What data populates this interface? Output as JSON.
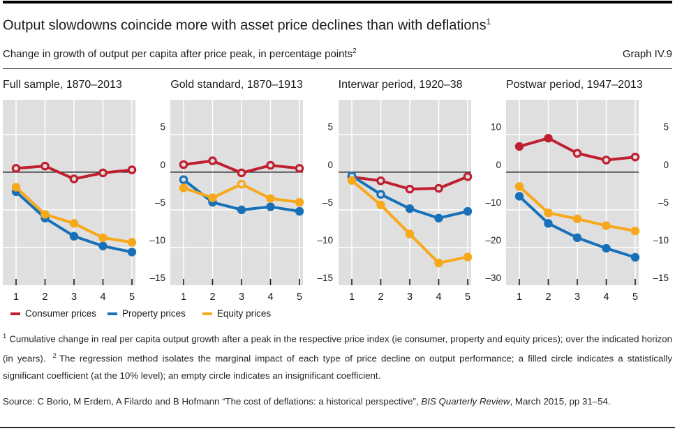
{
  "page": {
    "title": "Output slowdowns coincide more with asset price declines than with deflations",
    "title_sup": "1",
    "subtitle": "Change in growth of output per capita after price peak, in percentage points",
    "subtitle_sup": "2",
    "graph_label": "Graph IV.9"
  },
  "colors": {
    "consumer": "#c01f30",
    "property": "#1871b8",
    "equity": "#f7a81b",
    "plot_bg": "#dfdfdf",
    "grid": "#ffffff",
    "zero_line": "#1a1a1a",
    "text": "#1a1a1a"
  },
  "legend": [
    {
      "label": "Consumer prices",
      "series": "consumer"
    },
    {
      "label": "Property prices",
      "series": "property"
    },
    {
      "label": "Equity prices",
      "series": "equity"
    }
  ],
  "chart_data": [
    {
      "type": "line",
      "title": "Full sample, 1870–2013",
      "x": [
        1,
        2,
        3,
        4,
        5
      ],
      "yticks": [
        5,
        0,
        -5,
        -10,
        -15
      ],
      "ylim": [
        -15,
        9.6
      ],
      "series": [
        {
          "name": "Consumer prices",
          "key": "consumer",
          "values": [
            0.5,
            0.8,
            -0.9,
            -0.1,
            0.3
          ],
          "significant": [
            false,
            false,
            false,
            false,
            false
          ]
        },
        {
          "name": "Property prices",
          "key": "property",
          "values": [
            -2.6,
            -6.1,
            -8.5,
            -9.8,
            -10.6
          ],
          "significant": [
            true,
            true,
            true,
            true,
            true
          ]
        },
        {
          "name": "Equity prices",
          "key": "equity",
          "values": [
            -2.0,
            -5.6,
            -6.8,
            -8.7,
            -9.3
          ],
          "significant": [
            true,
            true,
            true,
            true,
            true
          ]
        }
      ]
    },
    {
      "type": "line",
      "title": "Gold standard, 1870–1913",
      "x": [
        1,
        2,
        3,
        4,
        5
      ],
      "yticks": [
        5,
        0,
        -5,
        -10,
        -15
      ],
      "ylim": [
        -15,
        9.6
      ],
      "series": [
        {
          "name": "Consumer prices",
          "key": "consumer",
          "values": [
            1.0,
            1.5,
            -0.1,
            0.9,
            0.5
          ],
          "significant": [
            false,
            false,
            false,
            false,
            false
          ]
        },
        {
          "name": "Property prices",
          "key": "property",
          "values": [
            -1.0,
            -4.0,
            -5.0,
            -4.6,
            -5.2
          ],
          "significant": [
            false,
            true,
            true,
            true,
            true
          ]
        },
        {
          "name": "Equity prices",
          "key": "equity",
          "values": [
            -2.1,
            -3.4,
            -1.6,
            -3.5,
            -4.0
          ],
          "significant": [
            true,
            true,
            false,
            true,
            true
          ]
        }
      ]
    },
    {
      "type": "line",
      "title": "Interwar period, 1920–38",
      "x": [
        1,
        2,
        3,
        4,
        5
      ],
      "yticks": [
        10,
        0,
        -10,
        -20,
        -30
      ],
      "ylim": [
        -30,
        19.2
      ],
      "series": [
        {
          "name": "Consumer prices",
          "key": "consumer",
          "values": [
            -1.3,
            -2.3,
            -4.5,
            -4.3,
            -1.2
          ],
          "significant": [
            false,
            false,
            false,
            false,
            false
          ]
        },
        {
          "name": "Property prices",
          "key": "property",
          "values": [
            -1.0,
            -5.9,
            -9.7,
            -12.2,
            -10.4
          ],
          "significant": [
            false,
            false,
            true,
            true,
            true
          ]
        },
        {
          "name": "Equity prices",
          "key": "equity",
          "values": [
            -2.2,
            -8.7,
            -16.4,
            -24.1,
            -22.5
          ],
          "significant": [
            true,
            true,
            true,
            true,
            true
          ]
        }
      ]
    },
    {
      "type": "line",
      "title": "Postwar period, 1947–2013",
      "x": [
        1,
        2,
        3,
        4,
        5
      ],
      "yticks": [
        5,
        0,
        -5,
        -10,
        -15
      ],
      "ylim": [
        -15,
        9.6
      ],
      "series": [
        {
          "name": "Consumer prices",
          "key": "consumer",
          "values": [
            3.4,
            4.5,
            2.5,
            1.6,
            2.0
          ],
          "significant": [
            true,
            true,
            false,
            false,
            false
          ]
        },
        {
          "name": "Property prices",
          "key": "property",
          "values": [
            -3.2,
            -6.8,
            -8.7,
            -10.1,
            -11.3
          ],
          "significant": [
            true,
            true,
            true,
            true,
            true
          ]
        },
        {
          "name": "Equity prices",
          "key": "equity",
          "values": [
            -1.9,
            -5.4,
            -6.2,
            -7.1,
            -7.8
          ],
          "significant": [
            true,
            true,
            true,
            true,
            true
          ]
        }
      ]
    }
  ],
  "footnotes": [
    {
      "marker": "1",
      "text": "Cumulative change in real per capita output growth after a peak in the respective price index (ie consumer, property and equity prices); over the indicated horizon (in years)."
    },
    {
      "marker": "2",
      "text": "The regression method isolates the marginal impact of each type of price decline on output performance; a filled circle indicates a statistically significant coefficient (at the 10% level); an empty circle indicates an insignificant coefficient."
    }
  ],
  "source": {
    "prefix": "Source: C Borio, M Erdem, A Filardo and B Hofmann “The cost of deflations: a historical perspective”, ",
    "italic": "BIS Quarterly Review",
    "suffix": ", March 2015, pp 31–54."
  }
}
